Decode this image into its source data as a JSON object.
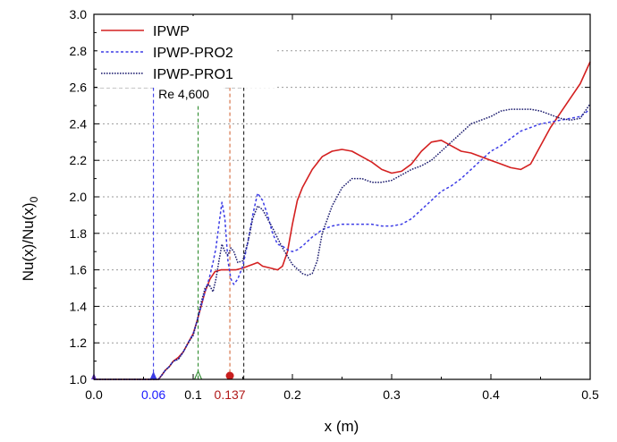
{
  "chart_data": {
    "type": "line",
    "title": "",
    "xlabel": "x (m)",
    "ylabel_main": "Nu(x)/Nu(x)",
    "ylabel_sub": "0",
    "xlim": [
      0,
      0.5
    ],
    "ylim": [
      1.0,
      3.0
    ],
    "xticks": [
      0.0,
      0.1,
      0.2,
      0.3,
      0.4,
      0.5
    ],
    "xtick_labels": [
      "0.0",
      "0.1",
      "0.2",
      "0.3",
      "0.4",
      "0.5"
    ],
    "yticks": [
      1.0,
      1.2,
      1.4,
      1.6,
      1.8,
      2.0,
      2.2,
      2.4,
      2.6,
      2.8,
      3.0
    ],
    "ytick_labels": [
      "1.0",
      "1.2",
      "1.4",
      "1.6",
      "1.8",
      "2.0",
      "2.2",
      "2.4",
      "2.6",
      "2.8",
      "3.0"
    ],
    "grid": "horizontal dotted",
    "legend_position": "top-left",
    "series": [
      {
        "name": "IPWP",
        "color": "#d42020",
        "style": "solid",
        "points": [
          [
            0.0,
            1.0
          ],
          [
            0.06,
            1.0
          ],
          [
            0.065,
            1.0
          ],
          [
            0.068,
            1.02
          ],
          [
            0.072,
            1.05
          ],
          [
            0.076,
            1.07
          ],
          [
            0.08,
            1.1
          ],
          [
            0.085,
            1.12
          ],
          [
            0.09,
            1.15
          ],
          [
            0.095,
            1.2
          ],
          [
            0.1,
            1.25
          ],
          [
            0.104,
            1.32
          ],
          [
            0.108,
            1.4
          ],
          [
            0.112,
            1.48
          ],
          [
            0.117,
            1.55
          ],
          [
            0.122,
            1.59
          ],
          [
            0.128,
            1.6
          ],
          [
            0.135,
            1.6
          ],
          [
            0.143,
            1.6
          ],
          [
            0.15,
            1.61
          ],
          [
            0.155,
            1.62
          ],
          [
            0.16,
            1.63
          ],
          [
            0.165,
            1.64
          ],
          [
            0.17,
            1.62
          ],
          [
            0.178,
            1.61
          ],
          [
            0.185,
            1.6
          ],
          [
            0.19,
            1.62
          ],
          [
            0.195,
            1.7
          ],
          [
            0.2,
            1.85
          ],
          [
            0.205,
            1.98
          ],
          [
            0.21,
            2.05
          ],
          [
            0.215,
            2.1
          ],
          [
            0.22,
            2.15
          ],
          [
            0.23,
            2.22
          ],
          [
            0.24,
            2.25
          ],
          [
            0.25,
            2.26
          ],
          [
            0.26,
            2.25
          ],
          [
            0.27,
            2.22
          ],
          [
            0.28,
            2.19
          ],
          [
            0.29,
            2.15
          ],
          [
            0.3,
            2.13
          ],
          [
            0.31,
            2.14
          ],
          [
            0.32,
            2.18
          ],
          [
            0.33,
            2.25
          ],
          [
            0.34,
            2.3
          ],
          [
            0.35,
            2.31
          ],
          [
            0.36,
            2.28
          ],
          [
            0.37,
            2.25
          ],
          [
            0.38,
            2.24
          ],
          [
            0.39,
            2.22
          ],
          [
            0.4,
            2.2
          ],
          [
            0.41,
            2.18
          ],
          [
            0.42,
            2.16
          ],
          [
            0.43,
            2.15
          ],
          [
            0.44,
            2.18
          ],
          [
            0.45,
            2.28
          ],
          [
            0.46,
            2.38
          ],
          [
            0.47,
            2.46
          ],
          [
            0.48,
            2.54
          ],
          [
            0.49,
            2.62
          ],
          [
            0.5,
            2.74
          ]
        ]
      },
      {
        "name": "IPWP-PRO2",
        "color": "#3c3ce6",
        "style": "dotted",
        "points": [
          [
            0.0,
            1.0
          ],
          [
            0.06,
            1.0
          ],
          [
            0.065,
            1.0
          ],
          [
            0.068,
            1.02
          ],
          [
            0.072,
            1.05
          ],
          [
            0.076,
            1.07
          ],
          [
            0.08,
            1.1
          ],
          [
            0.085,
            1.11
          ],
          [
            0.09,
            1.15
          ],
          [
            0.095,
            1.2
          ],
          [
            0.1,
            1.25
          ],
          [
            0.104,
            1.32
          ],
          [
            0.108,
            1.4
          ],
          [
            0.112,
            1.48
          ],
          [
            0.116,
            1.55
          ],
          [
            0.12,
            1.64
          ],
          [
            0.123,
            1.72
          ],
          [
            0.126,
            1.85
          ],
          [
            0.129,
            1.97
          ],
          [
            0.132,
            1.88
          ],
          [
            0.135,
            1.65
          ],
          [
            0.138,
            1.55
          ],
          [
            0.141,
            1.52
          ],
          [
            0.145,
            1.55
          ],
          [
            0.15,
            1.62
          ],
          [
            0.155,
            1.75
          ],
          [
            0.16,
            1.9
          ],
          [
            0.165,
            2.02
          ],
          [
            0.17,
            1.98
          ],
          [
            0.175,
            1.9
          ],
          [
            0.18,
            1.8
          ],
          [
            0.185,
            1.74
          ],
          [
            0.19,
            1.73
          ],
          [
            0.195,
            1.71
          ],
          [
            0.2,
            1.7
          ],
          [
            0.205,
            1.71
          ],
          [
            0.21,
            1.73
          ],
          [
            0.22,
            1.78
          ],
          [
            0.23,
            1.82
          ],
          [
            0.24,
            1.84
          ],
          [
            0.25,
            1.85
          ],
          [
            0.26,
            1.85
          ],
          [
            0.27,
            1.85
          ],
          [
            0.28,
            1.85
          ],
          [
            0.29,
            1.84
          ],
          [
            0.3,
            1.84
          ],
          [
            0.31,
            1.85
          ],
          [
            0.32,
            1.88
          ],
          [
            0.33,
            1.93
          ],
          [
            0.34,
            1.98
          ],
          [
            0.35,
            2.03
          ],
          [
            0.36,
            2.06
          ],
          [
            0.37,
            2.1
          ],
          [
            0.38,
            2.15
          ],
          [
            0.39,
            2.2
          ],
          [
            0.4,
            2.25
          ],
          [
            0.41,
            2.28
          ],
          [
            0.42,
            2.32
          ],
          [
            0.43,
            2.36
          ],
          [
            0.44,
            2.38
          ],
          [
            0.45,
            2.4
          ],
          [
            0.46,
            2.41
          ],
          [
            0.47,
            2.42
          ],
          [
            0.48,
            2.43
          ],
          [
            0.49,
            2.44
          ],
          [
            0.5,
            2.48
          ]
        ]
      },
      {
        "name": "IPWP-PRO1",
        "color": "#1c1c6e",
        "style": "densely-dotted",
        "points": [
          [
            0.0,
            1.0
          ],
          [
            0.06,
            1.0
          ],
          [
            0.065,
            1.0
          ],
          [
            0.068,
            1.02
          ],
          [
            0.072,
            1.05
          ],
          [
            0.076,
            1.07
          ],
          [
            0.08,
            1.1
          ],
          [
            0.085,
            1.11
          ],
          [
            0.09,
            1.15
          ],
          [
            0.095,
            1.2
          ],
          [
            0.1,
            1.24
          ],
          [
            0.104,
            1.32
          ],
          [
            0.108,
            1.42
          ],
          [
            0.112,
            1.5
          ],
          [
            0.116,
            1.52
          ],
          [
            0.12,
            1.48
          ],
          [
            0.123,
            1.55
          ],
          [
            0.126,
            1.65
          ],
          [
            0.129,
            1.74
          ],
          [
            0.132,
            1.7
          ],
          [
            0.135,
            1.68
          ],
          [
            0.138,
            1.72
          ],
          [
            0.141,
            1.7
          ],
          [
            0.145,
            1.64
          ],
          [
            0.15,
            1.65
          ],
          [
            0.155,
            1.75
          ],
          [
            0.16,
            1.88
          ],
          [
            0.165,
            1.95
          ],
          [
            0.17,
            1.93
          ],
          [
            0.18,
            1.83
          ],
          [
            0.19,
            1.72
          ],
          [
            0.2,
            1.63
          ],
          [
            0.21,
            1.58
          ],
          [
            0.215,
            1.57
          ],
          [
            0.22,
            1.58
          ],
          [
            0.225,
            1.65
          ],
          [
            0.23,
            1.8
          ],
          [
            0.24,
            1.95
          ],
          [
            0.25,
            2.05
          ],
          [
            0.26,
            2.1
          ],
          [
            0.27,
            2.1
          ],
          [
            0.28,
            2.08
          ],
          [
            0.29,
            2.08
          ],
          [
            0.3,
            2.09
          ],
          [
            0.31,
            2.12
          ],
          [
            0.32,
            2.15
          ],
          [
            0.33,
            2.17
          ],
          [
            0.34,
            2.2
          ],
          [
            0.35,
            2.25
          ],
          [
            0.36,
            2.3
          ],
          [
            0.37,
            2.35
          ],
          [
            0.38,
            2.4
          ],
          [
            0.39,
            2.42
          ],
          [
            0.4,
            2.44
          ],
          [
            0.41,
            2.47
          ],
          [
            0.42,
            2.48
          ],
          [
            0.43,
            2.48
          ],
          [
            0.44,
            2.48
          ],
          [
            0.45,
            2.47
          ],
          [
            0.46,
            2.45
          ],
          [
            0.47,
            2.43
          ],
          [
            0.48,
            2.42
          ],
          [
            0.49,
            2.43
          ],
          [
            0.5,
            2.51
          ]
        ]
      }
    ],
    "vlines": [
      {
        "x": 0.06,
        "y_top": 2.6,
        "color": "#3c3ce6",
        "label": "0.06",
        "label_color": "#1a1aff",
        "marker": "triangle-filled"
      },
      {
        "x": 0.105,
        "y_top": 2.6,
        "color": "#2e8b2e",
        "label": "",
        "label_color": "#2e8b2e",
        "marker": "triangle-open"
      },
      {
        "x": 0.137,
        "y_top": 2.6,
        "color": "#d46a3c",
        "label": "0.137",
        "label_color": "#b01818",
        "marker": "circle-filled"
      },
      {
        "x": 0.151,
        "y_top": 2.6,
        "color": "#222222",
        "label": "",
        "label_color": "#222222",
        "marker": "none"
      }
    ],
    "annotations": [
      {
        "text": "Re 4,600",
        "x": 0.065,
        "y": 2.54
      }
    ],
    "reference_hline": {
      "y": 2.6,
      "x_from": 0.0,
      "x_to": 0.151,
      "color": "#222222"
    }
  }
}
